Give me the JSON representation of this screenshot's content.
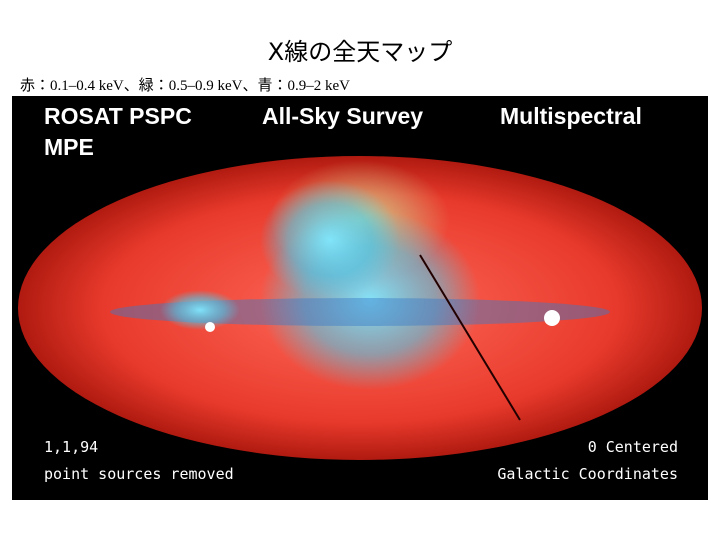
{
  "header": {
    "title": "X線の全天マップ",
    "subtitle": "赤：0.1–0.4 keV、緑：0.5–0.9 keV、青：0.9–2 keV"
  },
  "image": {
    "top_left": "ROSAT PSPC",
    "top_left_second": "MPE",
    "top_center": "All-Sky Survey",
    "top_right": "Multispectral",
    "bottom_left_date": "1,1,94",
    "bottom_left_note": "point sources removed",
    "bottom_right_center": "0 Centered",
    "bottom_right_coords": "Galactic Coordinates"
  }
}
